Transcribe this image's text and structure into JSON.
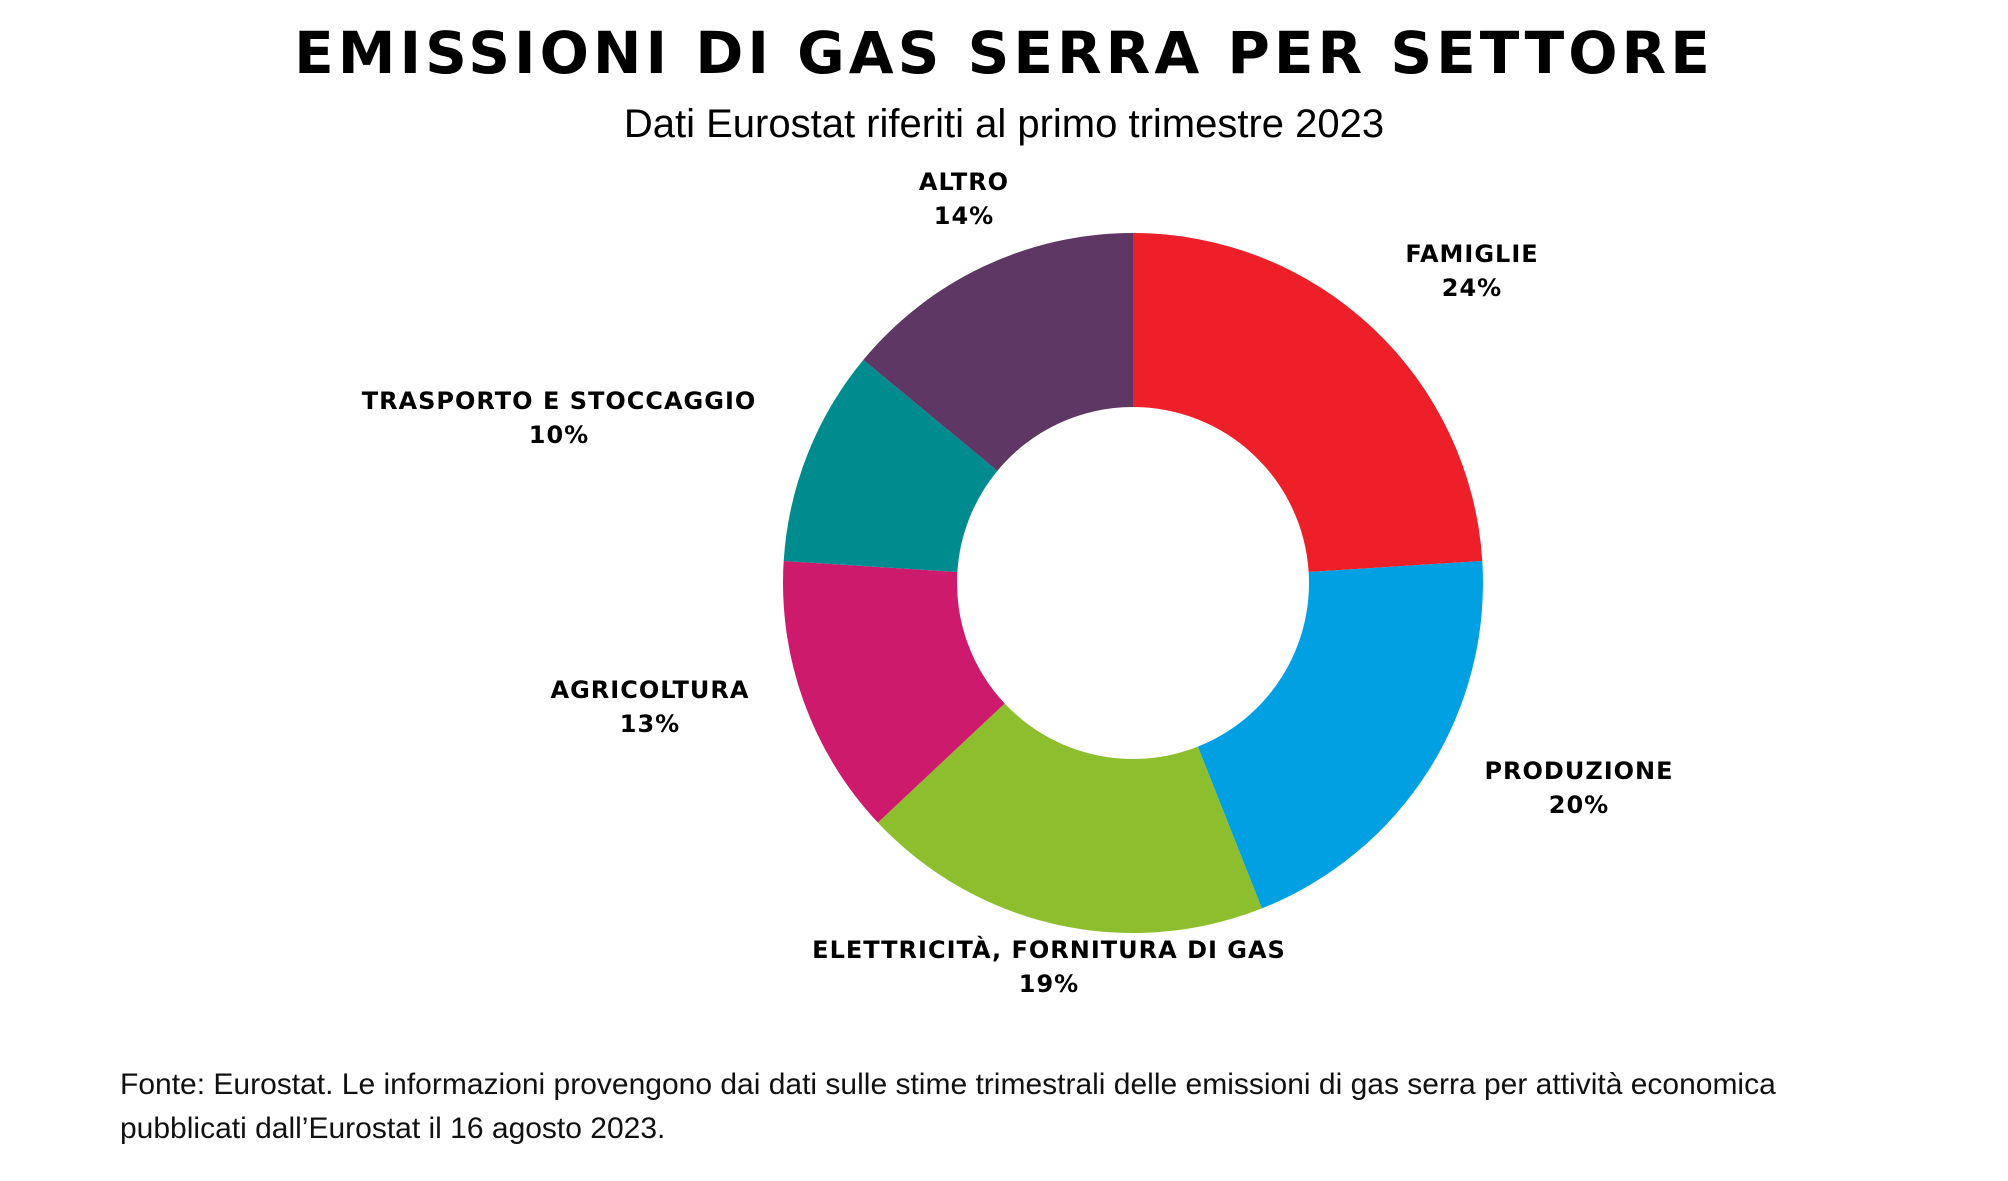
{
  "chart_data": {
    "type": "pie",
    "variant": "donut",
    "title": "Emissioni di gas serra per settore",
    "subtitle": "Dati Eurostat riferiti al primo trimestre 2023",
    "unit": "%",
    "start": "top, clockwise",
    "slices": [
      {
        "label": "FAMIGLIE",
        "value": 24,
        "value_label": "24%",
        "color": "#ED2029"
      },
      {
        "label": "PRODUZIONE",
        "value": 20,
        "value_label": "20%",
        "color": "#00A0E3"
      },
      {
        "label": "ELETTRICITÀ, FORNITURA DI GAS",
        "value": 19,
        "value_label": "19%",
        "color": "#8DBE2E"
      },
      {
        "label": "AGRICOLTURA",
        "value": 13,
        "value_label": "13%",
        "color": "#CD1A6C"
      },
      {
        "label": "TRASPORTO E STOCCAGGIO",
        "value": 10,
        "value_label": "10%",
        "color": "#008C8F"
      },
      {
        "label": "ALTRO",
        "value": 14,
        "value_label": "14%",
        "color": "#5E3764"
      }
    ]
  },
  "footnote": {
    "line1": "Fonte: Eurostat. Le informazioni provengono dai dati sulle stime trimestrali delle emissioni di gas serra per attività economica",
    "line2": "pubblicati dall’Eurostat il 16 agosto 2023."
  }
}
